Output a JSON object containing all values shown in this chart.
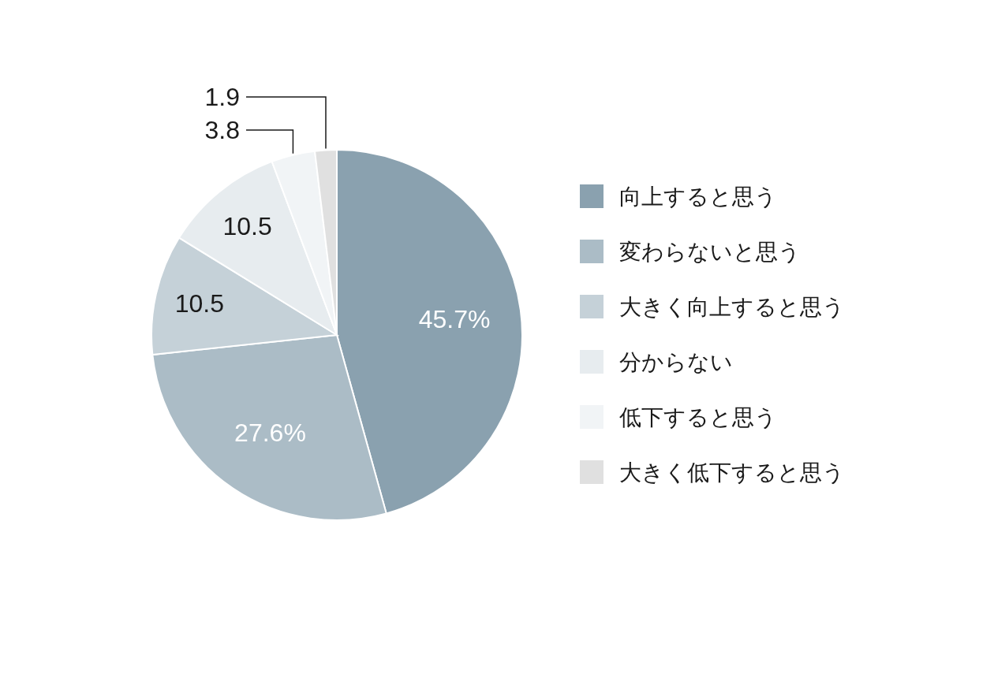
{
  "chart_data": {
    "type": "pie",
    "categories": [
      "向上すると思う",
      "変わらないと思う",
      "大きく向上すると思う",
      "分からない",
      "低下すると思う",
      "大きく低下すると思う"
    ],
    "values": [
      45.7,
      27.6,
      10.5,
      10.5,
      3.8,
      1.9
    ],
    "colors": [
      "#8aa1af",
      "#abbcc6",
      "#c5d1d8",
      "#e7ecef",
      "#f1f4f6",
      "#e0e0e0"
    ],
    "value_labels": [
      "45.7%",
      "27.6%",
      "10.5",
      "10.5",
      "3.8",
      "1.9"
    ],
    "legend": "right"
  }
}
